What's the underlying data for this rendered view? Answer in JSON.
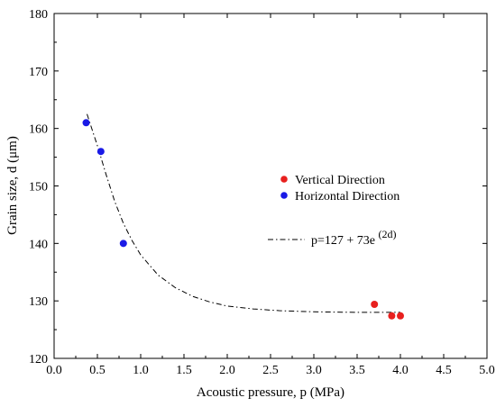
{
  "chart_data": {
    "type": "scatter",
    "xlabel": "Acoustic pressure, p (MPa)",
    "ylabel": "Grain size, d (μm)",
    "xlim": [
      0.0,
      5.0
    ],
    "ylim": [
      120,
      180
    ],
    "xticks": [
      "0.0",
      "0.5",
      "1.0",
      "1.5",
      "2.0",
      "2.5",
      "3.0",
      "3.5",
      "4.0",
      "4.5",
      "5.0"
    ],
    "yticks": [
      "120",
      "130",
      "140",
      "150",
      "160",
      "170",
      "180"
    ],
    "grid": false,
    "legend_position": "center-right",
    "series": [
      {
        "name": "Vertical Direction",
        "color": "#e8201e",
        "marker": "circle",
        "points": [
          {
            "x": 3.7,
            "y": 129.4
          },
          {
            "x": 3.9,
            "y": 127.4
          },
          {
            "x": 4.0,
            "y": 127.4
          }
        ]
      },
      {
        "name": "Horizontal Direction",
        "color": "#1a1ae6",
        "marker": "circle",
        "points": [
          {
            "x": 0.37,
            "y": 161.0
          },
          {
            "x": 0.54,
            "y": 156.0
          },
          {
            "x": 0.8,
            "y": 140.0
          }
        ]
      }
    ],
    "fit": {
      "label_main": "p=127 + 73e",
      "label_exp": "(2d)",
      "style": "dash-dot",
      "color": "#000000",
      "asymptote": 128.0,
      "curve": [
        {
          "x": 0.38,
          "y": 162.5
        },
        {
          "x": 0.5,
          "y": 157.0
        },
        {
          "x": 0.6,
          "y": 152.0
        },
        {
          "x": 0.7,
          "y": 147.3
        },
        {
          "x": 0.8,
          "y": 143.5
        },
        {
          "x": 0.9,
          "y": 140.5
        },
        {
          "x": 1.0,
          "y": 138.0
        },
        {
          "x": 1.2,
          "y": 134.5
        },
        {
          "x": 1.4,
          "y": 132.3
        },
        {
          "x": 1.6,
          "y": 130.8
        },
        {
          "x": 1.8,
          "y": 129.8
        },
        {
          "x": 2.0,
          "y": 129.1
        },
        {
          "x": 2.3,
          "y": 128.6
        },
        {
          "x": 2.6,
          "y": 128.3
        },
        {
          "x": 3.0,
          "y": 128.1
        },
        {
          "x": 3.5,
          "y": 128.0
        },
        {
          "x": 4.0,
          "y": 128.0
        }
      ]
    }
  }
}
